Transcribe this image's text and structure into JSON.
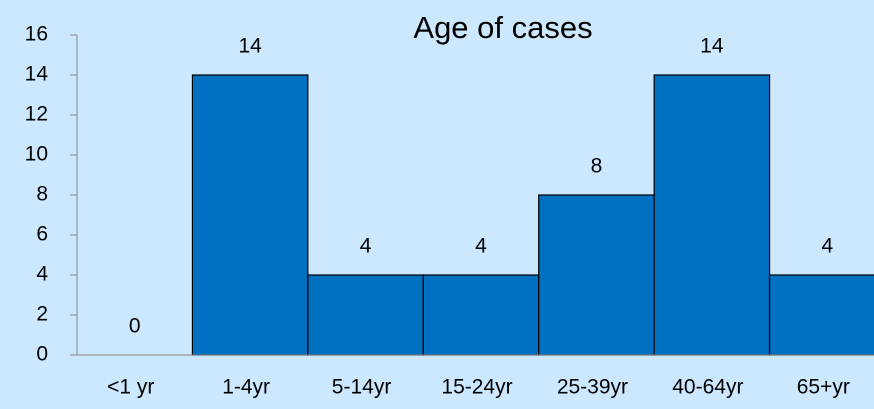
{
  "chart_data": {
    "type": "bar",
    "title": "Age of cases",
    "categories": [
      "<1 yr",
      "1-4yr",
      "5-14yr",
      "15-24yr",
      "25-39yr",
      "40-64yr",
      "65+yr"
    ],
    "values": [
      0,
      14,
      4,
      4,
      8,
      14,
      4
    ],
    "color": "#0070c0",
    "ylim": [
      0,
      16
    ],
    "yticks": [
      0,
      2,
      4,
      6,
      8,
      10,
      12,
      14,
      16
    ],
    "grid": false
  }
}
